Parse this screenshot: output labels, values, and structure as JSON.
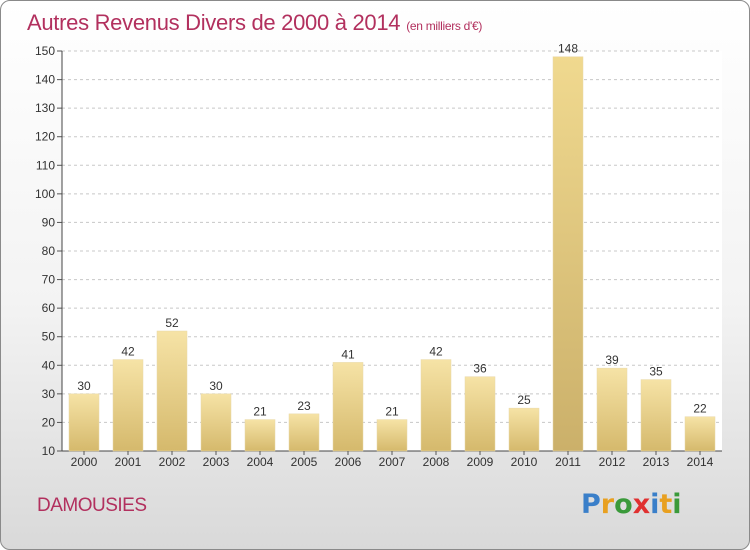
{
  "page": {
    "title": "Autres Revenus Divers de 2000 à 2014",
    "subtitle": "(en milliers d'€)",
    "place": "DAMOUSIES",
    "logo": "Proxiti"
  },
  "colors": {
    "title": "#b2305e",
    "bar_light": "#f6e3a6",
    "bar_dark": "#d5b96c",
    "bar_highlight": "#cbb06a",
    "grid": "#c8c8c8",
    "logo_letters": [
      "#3a7fc9",
      "#e8a020",
      "#3a9a3a",
      "#e03030",
      "#3a7fc9",
      "#e8a020",
      "#3a9a3a"
    ]
  },
  "chart_data": {
    "type": "bar",
    "title": "Autres Revenus Divers de 2000 à 2014",
    "subtitle": "(en milliers d'€)",
    "categories": [
      "2000",
      "2001",
      "2002",
      "2003",
      "2004",
      "2005",
      "2006",
      "2007",
      "2008",
      "2009",
      "2010",
      "2011",
      "2012",
      "2013",
      "2014"
    ],
    "values": [
      30,
      42,
      52,
      30,
      21,
      23,
      41,
      21,
      42,
      36,
      25,
      148,
      39,
      35,
      22
    ],
    "highlight_index": 11,
    "ylim": [
      10,
      150
    ],
    "yticks": [
      10,
      20,
      30,
      40,
      50,
      60,
      70,
      80,
      90,
      100,
      110,
      120,
      130,
      140,
      150
    ],
    "grid": true,
    "xlabel": "",
    "ylabel": ""
  }
}
